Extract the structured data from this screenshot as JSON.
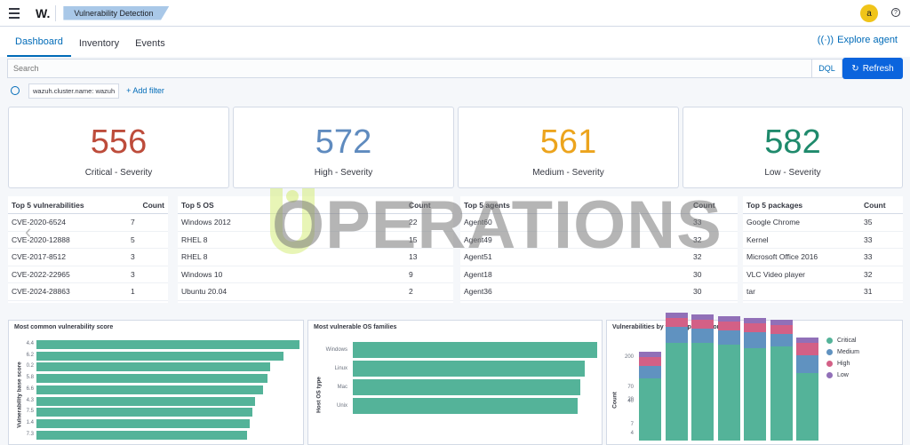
{
  "app": {
    "logo": "W.",
    "breadcrumb": "Vulnerability Detection",
    "avatar": "a",
    "help": "?"
  },
  "tabs": [
    "Dashboard",
    "Inventory",
    "Events"
  ],
  "explore": "Explore agent",
  "search": {
    "placeholder": "Search",
    "dql": "DQL",
    "refresh": "Refresh"
  },
  "filters": {
    "pill": "wazuh.cluster.name: wazuh",
    "add": "+ Add filter"
  },
  "severity": [
    {
      "value": "556",
      "label": "Critical - Severity",
      "color": "#bd4c3b"
    },
    {
      "value": "572",
      "label": "High - Severity",
      "color": "#5f8bbf"
    },
    {
      "value": "561",
      "label": "Medium - Severity",
      "color": "#eca41d"
    },
    {
      "value": "582",
      "label": "Low - Severity",
      "color": "#1f8a6c"
    }
  ],
  "tables": {
    "vulns": {
      "h1": "Top 5 vulnerabilities",
      "h2": "Count",
      "rows": [
        [
          "CVE-2020-6524",
          "7"
        ],
        [
          "CVE-2020-12888",
          "5"
        ],
        [
          "CVE-2017-8512",
          "3"
        ],
        [
          "CVE-2022-22965",
          "3"
        ],
        [
          "CVE-2024-28863",
          "1"
        ]
      ]
    },
    "os": {
      "h1": "Top 5 OS",
      "h2": "Count",
      "rows": [
        [
          "Windows 2012",
          "22"
        ],
        [
          "RHEL 8",
          "15"
        ],
        [
          "RHEL 8",
          "13"
        ],
        [
          "Windows 10",
          "9"
        ],
        [
          "Ubuntu 20.04",
          "2"
        ]
      ]
    },
    "agents": {
      "h1": "Top 5 agents",
      "h2": "Count",
      "rows": [
        [
          "Agent60",
          "33"
        ],
        [
          "Agent49",
          "32"
        ],
        [
          "Agent51",
          "32"
        ],
        [
          "Agent18",
          "30"
        ],
        [
          "Agent36",
          "30"
        ]
      ]
    },
    "packages": {
      "h1": "Top 5 packages",
      "h2": "Count",
      "rows": [
        [
          "Google Chrome",
          "35"
        ],
        [
          "Kernel",
          "33"
        ],
        [
          "Microsoft Office 2016",
          "33"
        ],
        [
          "VLC Video player",
          "32"
        ],
        [
          "tar",
          "31"
        ]
      ]
    }
  },
  "panels": {
    "score": {
      "title": "Most common vulnerability score",
      "ylabel": "Vulnerability base score",
      "labels": [
        "4.4",
        "6.2",
        "0.2",
        "5.8",
        "6.6",
        "4.3",
        "7.5",
        "1.4",
        "7.3"
      ],
      "values": [
        100,
        94,
        89,
        88,
        86,
        83,
        82,
        81,
        80
      ]
    },
    "os": {
      "title": "Most vulnerable OS families",
      "ylabel": "Host OS type",
      "labels": [
        "Windows",
        "Linux",
        "Mac",
        "Unix"
      ],
      "values": [
        100,
        95,
        93,
        92
      ]
    },
    "year": {
      "title": "Vulnerabilities by year of publication",
      "ylabel": "Count",
      "ticks": [
        "200",
        "70",
        "40",
        "20",
        "7",
        "4"
      ],
      "legend": [
        "Critical",
        "Medium",
        "High",
        "Low"
      ],
      "colors": [
        "#54b399",
        "#6092c0",
        "#d36086",
        "#9170b8"
      ]
    }
  },
  "watermark": "OPERATIONS"
}
